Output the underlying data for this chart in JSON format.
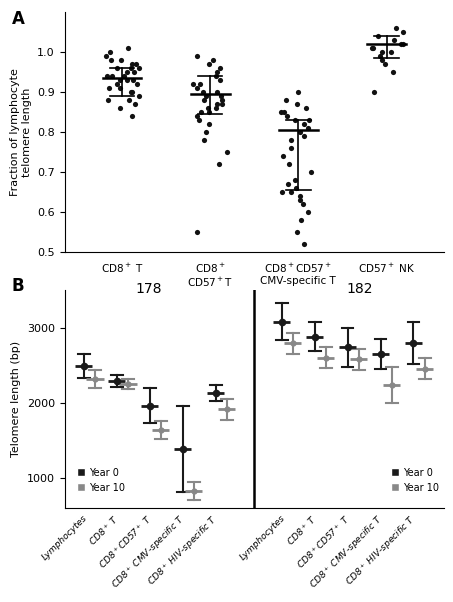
{
  "panel_A": {
    "title": "A",
    "ylabel": "Fraction of lymphocyte\ntelomere length",
    "ylim": [
      0.5,
      1.1
    ],
    "yticks": [
      0.5,
      0.6,
      0.7,
      0.8,
      0.9,
      1.0
    ],
    "means": [
      0.935,
      0.895,
      0.805,
      1.02
    ],
    "sd_high": [
      0.96,
      0.94,
      0.83,
      1.04
    ],
    "sd_low": [
      0.89,
      0.845,
      0.655,
      0.985
    ],
    "scatter_data": [
      [
        0.84,
        0.86,
        0.87,
        0.88,
        0.88,
        0.89,
        0.9,
        0.9,
        0.91,
        0.91,
        0.92,
        0.92,
        0.93,
        0.93,
        0.93,
        0.94,
        0.94,
        0.94,
        0.95,
        0.95,
        0.96,
        0.96,
        0.96,
        0.97,
        0.97,
        0.98,
        0.98,
        0.99,
        1.0,
        1.01
      ],
      [
        0.72,
        0.75,
        0.78,
        0.8,
        0.82,
        0.83,
        0.84,
        0.85,
        0.85,
        0.86,
        0.86,
        0.87,
        0.87,
        0.88,
        0.88,
        0.89,
        0.89,
        0.9,
        0.9,
        0.91,
        0.92,
        0.92,
        0.93,
        0.94,
        0.95,
        0.96,
        0.97,
        0.98,
        0.99,
        0.55
      ],
      [
        0.52,
        0.55,
        0.58,
        0.6,
        0.62,
        0.63,
        0.64,
        0.65,
        0.65,
        0.66,
        0.67,
        0.68,
        0.7,
        0.72,
        0.74,
        0.76,
        0.78,
        0.79,
        0.8,
        0.81,
        0.82,
        0.83,
        0.83,
        0.84,
        0.85,
        0.85,
        0.86,
        0.87,
        0.88,
        0.9
      ],
      [
        0.9,
        0.95,
        0.97,
        0.98,
        0.99,
        1.0,
        1.0,
        1.01,
        1.01,
        1.02,
        1.02,
        1.03,
        1.04,
        1.05,
        1.06
      ]
    ]
  },
  "panel_B": {
    "title": "B",
    "ylabel": "Telomere length (bp)",
    "ylim": [
      600,
      3500
    ],
    "yticks": [
      1000,
      2000,
      3000
    ],
    "left_label": "178",
    "right_label": "182",
    "left_categories": [
      "Lymphocytes",
      "CD8$^+$ T",
      "CD8$^+$CD57$^+$ T",
      "CD8$^+$ CMV-specific T",
      "CD8$^+$ HIV-specific T"
    ],
    "right_categories": [
      "Lymphocytes",
      "CD8$^+$ T",
      "CD8$^+$CD57$^+$ T",
      "CD8$^+$ CMV-specific T",
      "CD8$^+$ HIV-specific T"
    ],
    "left_year0_mean": [
      2490,
      2290,
      1960,
      1380,
      2130
    ],
    "left_year0_err": [
      160,
      75,
      230,
      570,
      110
    ],
    "left_year10_mean": [
      2320,
      2250,
      1640,
      820,
      1910
    ],
    "left_year10_err": [
      120,
      70,
      120,
      120,
      140
    ],
    "right_year0_mean": [
      3080,
      2880,
      2740,
      2650,
      2800
    ],
    "right_year0_err": [
      240,
      190,
      260,
      200,
      280
    ],
    "right_year10_mean": [
      2790,
      2600,
      2580,
      2230,
      2450
    ],
    "right_year10_err": [
      140,
      140,
      140,
      240,
      140
    ],
    "color_year0": "#1a1a1a",
    "color_year10": "#888888"
  }
}
